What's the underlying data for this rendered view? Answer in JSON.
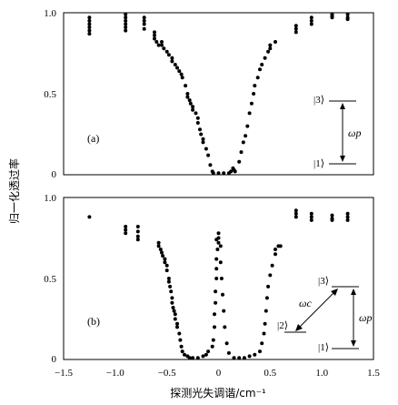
{
  "chart_data": [
    {
      "type": "scatter",
      "panel_label": "(a)",
      "xlim": [
        -1.5,
        1.5
      ],
      "ylim": [
        0,
        1.0
      ],
      "yticks": [
        "0",
        "0.5",
        "1.0"
      ],
      "points": [
        [
          -1.25,
          0.95
        ],
        [
          -1.25,
          0.93
        ],
        [
          -1.25,
          0.91
        ],
        [
          -1.25,
          0.89
        ],
        [
          -1.25,
          0.87
        ],
        [
          -1.25,
          0.97
        ],
        [
          -0.9,
          0.97
        ],
        [
          -0.9,
          0.95
        ],
        [
          -0.9,
          0.93
        ],
        [
          -0.9,
          0.91
        ],
        [
          -0.9,
          0.89
        ],
        [
          -0.9,
          0.99
        ],
        [
          -0.72,
          0.97
        ],
        [
          -0.72,
          0.95
        ],
        [
          -0.72,
          0.93
        ],
        [
          -0.72,
          0.9
        ],
        [
          -0.62,
          0.88
        ],
        [
          -0.62,
          0.86
        ],
        [
          -0.62,
          0.84
        ],
        [
          -0.6,
          0.82
        ],
        [
          -0.58,
          0.8
        ],
        [
          -0.55,
          0.82
        ],
        [
          -0.55,
          0.8
        ],
        [
          -0.53,
          0.78
        ],
        [
          -0.5,
          0.76
        ],
        [
          -0.48,
          0.74
        ],
        [
          -0.45,
          0.72
        ],
        [
          -0.45,
          0.7
        ],
        [
          -0.42,
          0.68
        ],
        [
          -0.4,
          0.66
        ],
        [
          -0.38,
          0.64
        ],
        [
          -0.36,
          0.62
        ],
        [
          -0.35,
          0.6
        ],
        [
          -0.32,
          0.55
        ],
        [
          -0.3,
          0.5
        ],
        [
          -0.3,
          0.48
        ],
        [
          -0.28,
          0.46
        ],
        [
          -0.27,
          0.44
        ],
        [
          -0.25,
          0.42
        ],
        [
          -0.25,
          0.4
        ],
        [
          -0.22,
          0.38
        ],
        [
          -0.2,
          0.35
        ],
        [
          -0.2,
          0.32
        ],
        [
          -0.18,
          0.28
        ],
        [
          -0.17,
          0.25
        ],
        [
          -0.15,
          0.22
        ],
        [
          -0.15,
          0.2
        ],
        [
          -0.12,
          0.16
        ],
        [
          -0.1,
          0.12
        ],
        [
          -0.08,
          0.06
        ],
        [
          -0.06,
          0.02
        ],
        [
          -0.05,
          0.01
        ],
        [
          0.0,
          0.01
        ],
        [
          0.05,
          0.01
        ],
        [
          0.1,
          0.01
        ],
        [
          0.12,
          0.02
        ],
        [
          0.14,
          0.04
        ],
        [
          0.15,
          0.03
        ],
        [
          0.16,
          0.02
        ],
        [
          0.2,
          0.08
        ],
        [
          0.22,
          0.14
        ],
        [
          0.24,
          0.2
        ],
        [
          0.26,
          0.24
        ],
        [
          0.28,
          0.3
        ],
        [
          0.3,
          0.38
        ],
        [
          0.32,
          0.44
        ],
        [
          0.34,
          0.5
        ],
        [
          0.35,
          0.55
        ],
        [
          0.38,
          0.6
        ],
        [
          0.4,
          0.65
        ],
        [
          0.42,
          0.68
        ],
        [
          0.45,
          0.72
        ],
        [
          0.48,
          0.76
        ],
        [
          0.5,
          0.78
        ],
        [
          0.5,
          0.8
        ],
        [
          0.55,
          0.82
        ],
        [
          0.75,
          0.9
        ],
        [
          0.75,
          0.92
        ],
        [
          0.75,
          0.88
        ],
        [
          0.9,
          0.95
        ],
        [
          0.9,
          0.93
        ],
        [
          0.9,
          0.97
        ],
        [
          1.1,
          0.97
        ],
        [
          1.1,
          0.98
        ],
        [
          1.1,
          0.99
        ],
        [
          1.25,
          0.97
        ],
        [
          1.25,
          0.96
        ],
        [
          1.25,
          0.99
        ]
      ],
      "level_diagram": {
        "upper": "|3⟩",
        "lower": "|1⟩",
        "pump": "ωp"
      }
    },
    {
      "type": "scatter",
      "panel_label": "(b)",
      "xlim": [
        -1.5,
        1.5
      ],
      "ylim": [
        0,
        1.0
      ],
      "yticks": [
        "0",
        "0.5",
        "1.0"
      ],
      "xticks": [
        "−1.5",
        "−1.0",
        "−0.5",
        "0",
        "0.5",
        "1.0",
        "1.5"
      ],
      "points": [
        [
          -1.25,
          0.88
        ],
        [
          -0.9,
          0.82
        ],
        [
          -0.9,
          0.8
        ],
        [
          -0.9,
          0.78
        ],
        [
          -0.78,
          0.82
        ],
        [
          -0.78,
          0.79
        ],
        [
          -0.78,
          0.76
        ],
        [
          -0.78,
          0.74
        ],
        [
          -0.58,
          0.72
        ],
        [
          -0.58,
          0.7
        ],
        [
          -0.56,
          0.68
        ],
        [
          -0.55,
          0.66
        ],
        [
          -0.54,
          0.64
        ],
        [
          -0.52,
          0.62
        ],
        [
          -0.52,
          0.6
        ],
        [
          -0.5,
          0.58
        ],
        [
          -0.5,
          0.55
        ],
        [
          -0.48,
          0.5
        ],
        [
          -0.48,
          0.48
        ],
        [
          -0.47,
          0.45
        ],
        [
          -0.46,
          0.42
        ],
        [
          -0.45,
          0.38
        ],
        [
          -0.45,
          0.35
        ],
        [
          -0.44,
          0.32
        ],
        [
          -0.43,
          0.3
        ],
        [
          -0.42,
          0.28
        ],
        [
          -0.42,
          0.25
        ],
        [
          -0.4,
          0.22
        ],
        [
          -0.4,
          0.2
        ],
        [
          -0.38,
          0.16
        ],
        [
          -0.37,
          0.12
        ],
        [
          -0.36,
          0.08
        ],
        [
          -0.35,
          0.05
        ],
        [
          -0.33,
          0.03
        ],
        [
          -0.3,
          0.02
        ],
        [
          -0.28,
          0.01
        ],
        [
          -0.25,
          0.01
        ],
        [
          -0.2,
          0.01
        ],
        [
          -0.15,
          0.02
        ],
        [
          -0.12,
          0.03
        ],
        [
          -0.1,
          0.05
        ],
        [
          -0.06,
          0.08
        ],
        [
          -0.05,
          0.12
        ],
        [
          -0.04,
          0.2
        ],
        [
          -0.04,
          0.28
        ],
        [
          -0.03,
          0.35
        ],
        [
          -0.03,
          0.42
        ],
        [
          -0.02,
          0.5
        ],
        [
          -0.02,
          0.56
        ],
        [
          -0.02,
          0.62
        ],
        [
          -0.01,
          0.68
        ],
        [
          0.0,
          0.72
        ],
        [
          0.0,
          0.75
        ],
        [
          0.0,
          0.78
        ],
        [
          -0.02,
          0.74
        ],
        [
          0.02,
          0.7
        ],
        [
          0.02,
          0.6
        ],
        [
          0.03,
          0.5
        ],
        [
          0.04,
          0.4
        ],
        [
          0.05,
          0.3
        ],
        [
          0.06,
          0.2
        ],
        [
          0.08,
          0.1
        ],
        [
          0.1,
          0.04
        ],
        [
          0.15,
          0.01
        ],
        [
          0.2,
          0.01
        ],
        [
          0.25,
          0.01
        ],
        [
          0.3,
          0.02
        ],
        [
          0.35,
          0.03
        ],
        [
          0.4,
          0.05
        ],
        [
          0.42,
          0.1
        ],
        [
          0.44,
          0.16
        ],
        [
          0.45,
          0.22
        ],
        [
          0.46,
          0.3
        ],
        [
          0.47,
          0.38
        ],
        [
          0.48,
          0.45
        ],
        [
          0.5,
          0.52
        ],
        [
          0.52,
          0.58
        ],
        [
          0.55,
          0.65
        ],
        [
          0.55,
          0.68
        ],
        [
          0.58,
          0.7
        ],
        [
          0.6,
          0.7
        ],
        [
          0.75,
          0.92
        ],
        [
          0.75,
          0.9
        ],
        [
          0.75,
          0.88
        ],
        [
          0.9,
          0.9
        ],
        [
          0.9,
          0.88
        ],
        [
          0.9,
          0.86
        ],
        [
          1.1,
          0.89
        ],
        [
          1.1,
          0.87
        ],
        [
          1.1,
          0.86
        ],
        [
          1.25,
          0.9
        ],
        [
          1.25,
          0.88
        ],
        [
          1.25,
          0.86
        ]
      ],
      "level_diagram": {
        "upper": "|3⟩",
        "middle": "|2⟩",
        "lower": "|1⟩",
        "coupling": "ωc",
        "pump": "ωp"
      }
    }
  ],
  "xlabel": "探测光失调谐/cm⁻¹",
  "ylabel": "归一化透过率"
}
